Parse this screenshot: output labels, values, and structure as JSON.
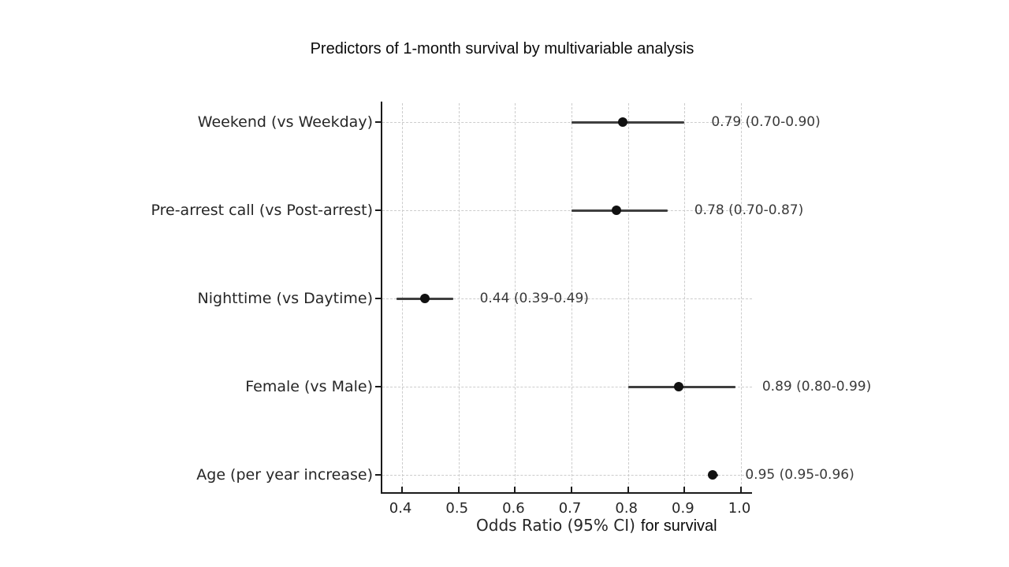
{
  "page": {
    "background": "#ffffff"
  },
  "chart_data": {
    "type": "scatter",
    "subtype": "forest-plot-horizontal-error-bars",
    "title": "Predictors of 1-month survival by multivariable analysis",
    "xlabel": "Odds Ratio (95% CI)",
    "xlabel_suffix": "for survival",
    "xlim": [
      0.365,
      1.0195
    ],
    "xticks": [
      0.4,
      0.5,
      0.6,
      0.7,
      0.8,
      0.9,
      1.0
    ],
    "grid": true,
    "grid_style": "dashed",
    "legend": "none",
    "rows": [
      {
        "label": "Weekend (vs Weekday)",
        "or": 0.79,
        "ci_low": 0.7,
        "ci_high": 0.9,
        "annotation": "0.79 (0.70-0.90)"
      },
      {
        "label": "Pre-arrest call (vs Post-arrest)",
        "or": 0.78,
        "ci_low": 0.7,
        "ci_high": 0.87,
        "annotation": "0.78 (0.70-0.87)"
      },
      {
        "label": "Nighttime (vs Daytime)",
        "or": 0.44,
        "ci_low": 0.39,
        "ci_high": 0.49,
        "annotation": "0.44 (0.39-0.49)"
      },
      {
        "label": "Female (vs Male)",
        "or": 0.89,
        "ci_low": 0.8,
        "ci_high": 0.99,
        "annotation": "0.89 (0.80-0.99)"
      },
      {
        "label": "Age (per year increase)",
        "or": 0.95,
        "ci_low": 0.95,
        "ci_high": 0.96,
        "annotation": "0.95 (0.95-0.96)"
      }
    ],
    "colors": {
      "marker": "#111111",
      "ci_line": "#3f3f3f",
      "grid": "#cccccc",
      "spine": "#1a1a1a",
      "tick_text": "#262626",
      "annotation_text": "#3a3a3a",
      "title_text": "#0a0a0a"
    }
  }
}
